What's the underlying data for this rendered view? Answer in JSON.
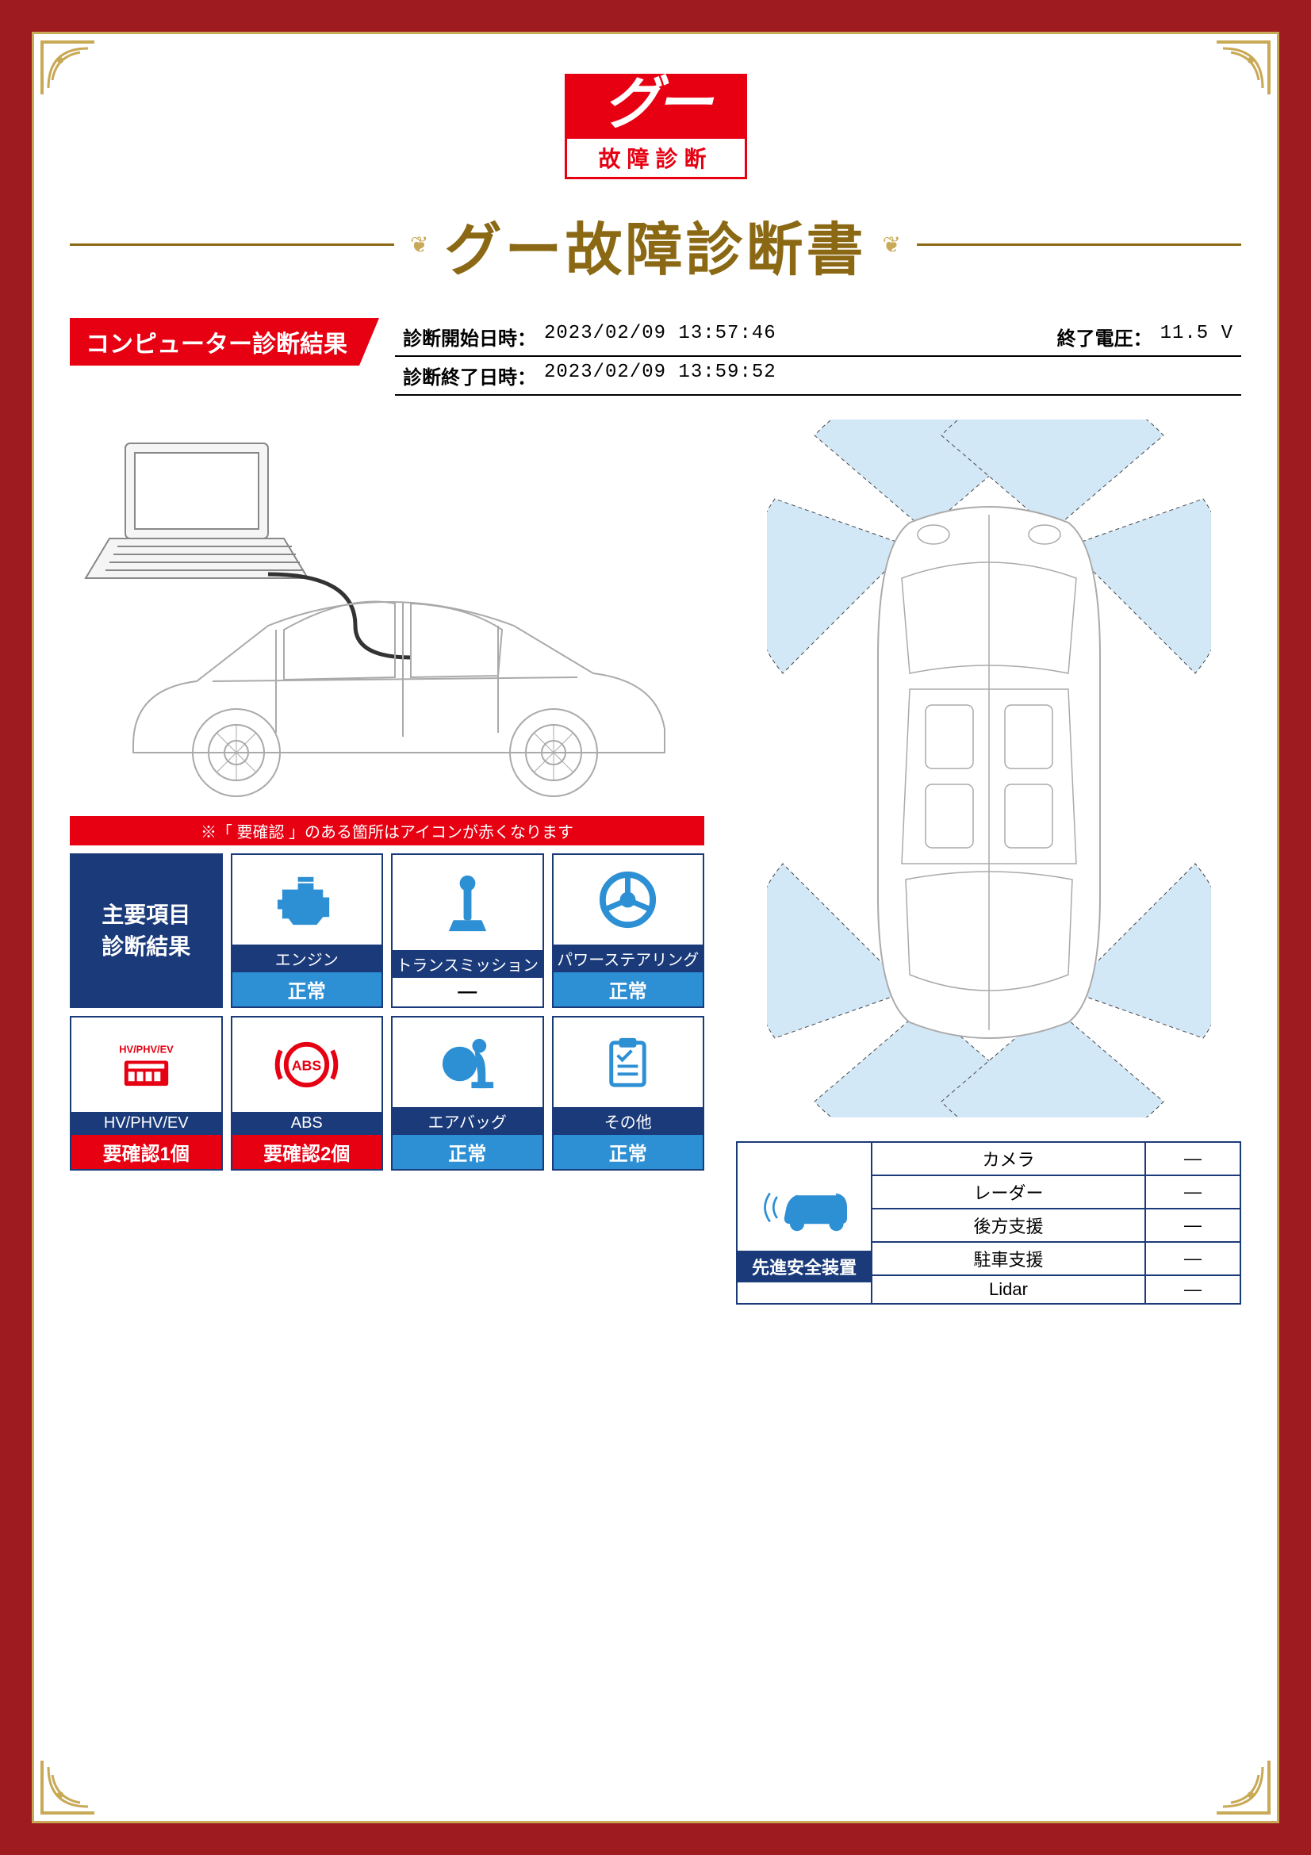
{
  "colors": {
    "frame_bg": "#9e1b1f",
    "gold": "#c8a956",
    "red": "#e60012",
    "navy": "#1a3a7a",
    "blue": "#2d8fd4",
    "title_brown": "#8b6914"
  },
  "logo": {
    "top": "グー",
    "bottom": "故障診断"
  },
  "title": "グー故障診断書",
  "section_tag": "コンピューター診断結果",
  "info": {
    "start_label": "診断開始日時：",
    "start_value": "2023/02/09 13:57:46",
    "end_label": "診断終了日時：",
    "end_value": "2023/02/09 13:59:52",
    "voltage_label": "終了電圧：",
    "voltage_value": "11.5 V"
  },
  "note": "※「 要確認 」のある箇所はアイコンが赤くなります",
  "diag_header": "主要項目\n診断結果",
  "diag_items": [
    {
      "label": "エンジン",
      "status": "正常",
      "status_class": "status-normal",
      "icon": "engine",
      "icon_color": "#2d8fd4"
    },
    {
      "label": "トランスミッション",
      "status": "—",
      "status_class": "status-dash",
      "icon": "transmission",
      "icon_color": "#2d8fd4"
    },
    {
      "label": "パワーステアリング",
      "status": "正常",
      "status_class": "status-normal",
      "icon": "steering",
      "icon_color": "#2d8fd4"
    },
    {
      "label": "HV/PHV/EV",
      "status": "要確認1個",
      "status_class": "status-check",
      "icon": "hvev",
      "icon_color": "#e60012"
    },
    {
      "label": "ABS",
      "status": "要確認2個",
      "status_class": "status-check",
      "icon": "abs",
      "icon_color": "#e60012"
    },
    {
      "label": "エアバッグ",
      "status": "正常",
      "status_class": "status-normal",
      "icon": "airbag",
      "icon_color": "#2d8fd4"
    },
    {
      "label": "その他",
      "status": "正常",
      "status_class": "status-normal",
      "icon": "other",
      "icon_color": "#2d8fd4"
    }
  ],
  "safety": {
    "header": "先進安全装置",
    "rows": [
      {
        "label": "カメラ",
        "value": "—"
      },
      {
        "label": "レーダー",
        "value": "—"
      },
      {
        "label": "後方支援",
        "value": "—"
      },
      {
        "label": "駐車支援",
        "value": "—"
      },
      {
        "label": "Lidar",
        "value": "—"
      }
    ]
  }
}
